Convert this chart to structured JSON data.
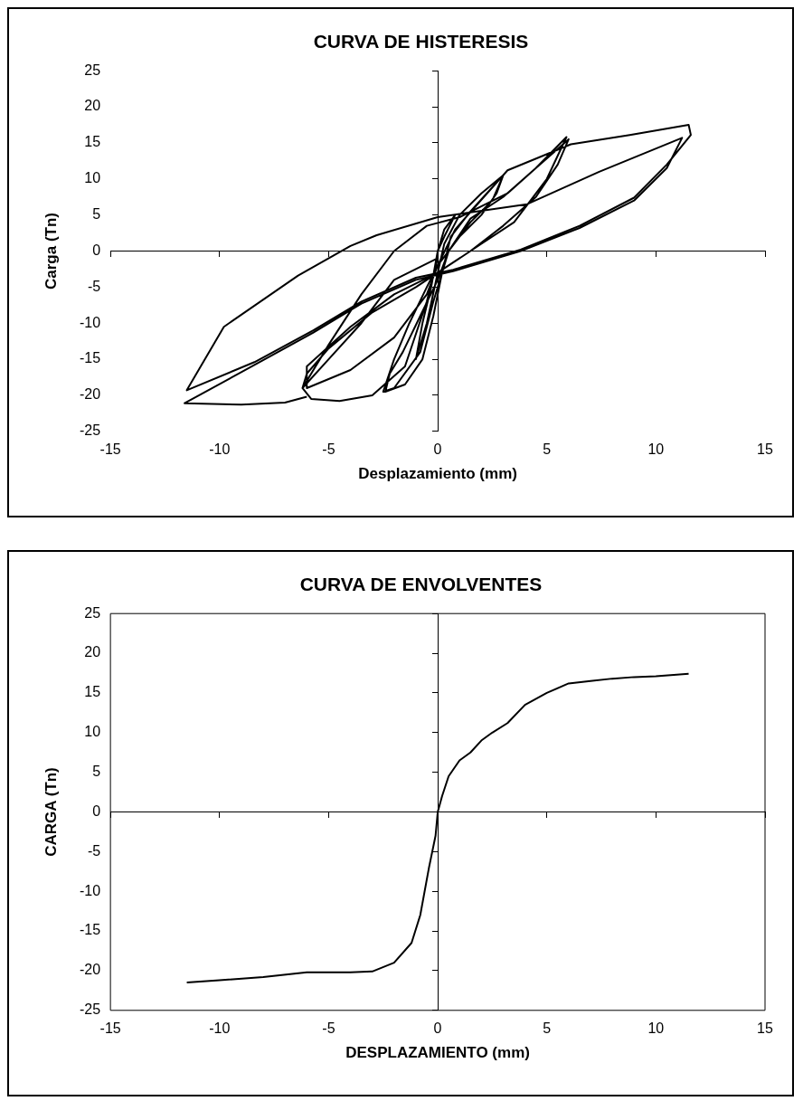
{
  "chart_data": [
    {
      "type": "line",
      "title": "CURVA DE HISTERESIS",
      "xlabel": "Desplazamiento (mm)",
      "ylabel": "Carga (Tn)",
      "xlim": [
        -15,
        15
      ],
      "ylim": [
        -25,
        25
      ],
      "xticks": [
        -15,
        -10,
        -5,
        0,
        5,
        10,
        15
      ],
      "yticks": [
        -25,
        -20,
        -15,
        -10,
        -5,
        0,
        5,
        10,
        15,
        20,
        25
      ],
      "marker": "none",
      "series": [
        {
          "color": "#000000",
          "x": [
            0,
            0.3,
            0.8,
            0.3,
            0,
            -0.3,
            -0.7,
            -1,
            -0.5,
            0,
            0.3,
            1,
            2,
            3,
            2.5,
            1.5,
            0.5,
            0,
            -0.8,
            -1.6,
            -2.2,
            -2.4,
            -1.5,
            -0.7,
            -0.2,
            0.2,
            0.6,
            1.5,
            3,
            2.7,
            2,
            1,
            0,
            -0.5,
            -1.3,
            -2,
            -2.5,
            -2,
            -0.8,
            -0.2,
            0.5,
            1.5,
            3,
            4.5,
            6,
            5.5,
            4.5,
            3,
            1.5,
            0.5,
            -1,
            -3,
            -5,
            -6,
            -6.2,
            -5.8,
            -4.5,
            -3,
            -1.5,
            -0.5,
            0,
            -2,
            -3.5,
            -5,
            -6.2,
            -5,
            -3.5,
            -2,
            -0.5,
            1,
            3.2,
            4.5,
            5.9,
            5,
            3.5,
            2,
            0,
            -2,
            -4,
            -6,
            -6,
            -4,
            -2,
            -0.5,
            0,
            0.8,
            3.2,
            6.1,
            8.8,
            11.5,
            11.6,
            10.5,
            9,
            6.5,
            3.8,
            0.7,
            -1,
            -3.5,
            -5.7,
            -8.4,
            -11.5,
            -9.8,
            -6.4,
            -4,
            -2.8,
            0,
            4.1,
            7.4,
            11.2,
            10.5,
            9,
            6.5,
            3.8,
            0.7,
            -1,
            -3.5,
            -5.7,
            -8.4,
            -11.6,
            -9,
            -7,
            -6
          ],
          "values": [
            0,
            3,
            5,
            2,
            0,
            -5,
            -10,
            -15,
            -10,
            -3,
            1,
            5,
            8,
            10.5,
            7,
            4,
            0,
            -4,
            -9,
            -14,
            -17,
            -19.5,
            -18.5,
            -15,
            -9,
            -3,
            2,
            5.5,
            10.5,
            8,
            5,
            2,
            -2,
            -5,
            -10,
            -15,
            -19.5,
            -19,
            -14,
            -7,
            0,
            4.5,
            7.5,
            11.5,
            15.5,
            12,
            7.5,
            3.5,
            0,
            -2,
            -5,
            -8.5,
            -13.5,
            -17,
            -19,
            -20.5,
            -20.8,
            -20,
            -16,
            -7,
            -1,
            -4,
            -10,
            -15,
            -19,
            -13,
            -6,
            0,
            3.5,
            4.7,
            8,
            11.5,
            15.8,
            10,
            4,
            1,
            -3,
            -6,
            -10.5,
            -16,
            -19,
            -16.5,
            -12,
            -6,
            -2,
            3,
            11.2,
            14.8,
            16.1,
            17.5,
            16.1,
            12,
            7.4,
            3.5,
            0.2,
            -2.6,
            -3.7,
            -7,
            -11,
            -15.4,
            -19.3,
            -10.5,
            -3.4,
            0.7,
            2.2,
            4.7,
            6.5,
            11,
            15.7,
            11.5,
            7,
            3.2,
            0,
            -2.8,
            -4,
            -7.3,
            -11.3,
            -15.8,
            -21.1,
            -21.3,
            -21,
            -20.2
          ]
        }
      ]
    },
    {
      "type": "line",
      "title": "CURVA DE ENVOLVENTES",
      "xlabel": "DESPLAZAMIENTO (mm)",
      "ylabel": "CARGA (Tn)",
      "xlim": [
        -15,
        15
      ],
      "ylim": [
        -25,
        25
      ],
      "xticks": [
        -15,
        -10,
        -5,
        0,
        5,
        10,
        15
      ],
      "yticks": [
        -25,
        -20,
        -15,
        -10,
        -5,
        0,
        5,
        10,
        15,
        20,
        25
      ],
      "marker": "none",
      "series": [
        {
          "color": "#000000",
          "x": [
            -11.5,
            -10,
            -8,
            -6,
            -4,
            -3,
            -2,
            -1.2,
            -0.8,
            -0.4,
            -0.1,
            0,
            0.2,
            0.5,
            1,
            1.5,
            2,
            2.5,
            3.2,
            4,
            5,
            6,
            7,
            8,
            9,
            10,
            11.5
          ],
          "values": [
            -21.5,
            -21.2,
            -20.8,
            -20.2,
            -20.2,
            -20.1,
            -19,
            -16.5,
            -13,
            -7,
            -3,
            0,
            2,
            4.5,
            6.5,
            7.5,
            9,
            10,
            11.2,
            13.5,
            15,
            16.2,
            16.5,
            16.8,
            17,
            17.1,
            17.4
          ]
        }
      ]
    }
  ]
}
